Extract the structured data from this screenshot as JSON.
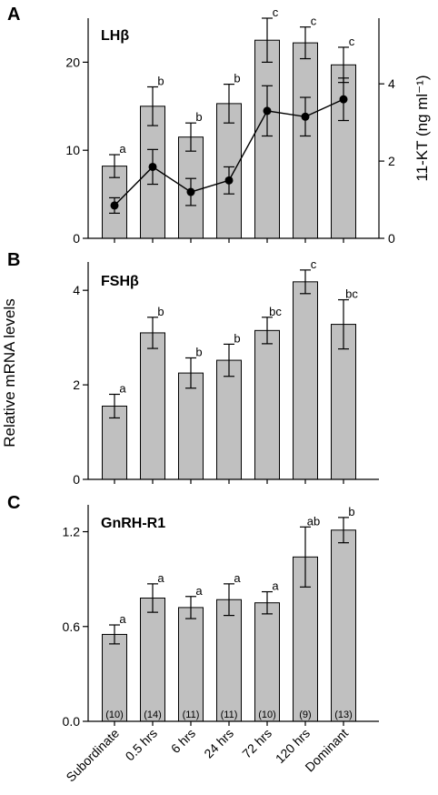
{
  "chart_data": [
    {
      "panel": "A",
      "type": "bar",
      "title": "LHβ",
      "categories": [
        "Subordinate",
        "0.5 hrs",
        "6 hrs",
        "24 hrs",
        "72 hrs",
        "120 hrs",
        "Dominant"
      ],
      "values": [
        8.2,
        15.0,
        11.5,
        15.3,
        22.5,
        22.2,
        19.7
      ],
      "errors": [
        1.3,
        2.2,
        1.6,
        2.2,
        2.5,
        1.8,
        2.0
      ],
      "significance": [
        "a",
        "b",
        "b",
        "b",
        "c",
        "c",
        "c"
      ],
      "ylim": [
        0,
        25
      ],
      "yticks": [
        0,
        10,
        20
      ],
      "ylabel": "",
      "secondary": {
        "type": "line",
        "ylabel": "11-KT (ng ml⁻¹)",
        "ylim": [
          0,
          5.7
        ],
        "yticks": [
          0,
          2,
          4
        ],
        "values": [
          0.85,
          1.85,
          1.2,
          1.5,
          3.3,
          3.15,
          3.6
        ],
        "errors": [
          0.2,
          0.45,
          0.35,
          0.35,
          0.65,
          0.5,
          0.55
        ]
      }
    },
    {
      "panel": "B",
      "type": "bar",
      "title": "FSHβ",
      "categories": [
        "Subordinate",
        "0.5 hrs",
        "6 hrs",
        "24 hrs",
        "72 hrs",
        "120 hrs",
        "Dominant"
      ],
      "values": [
        1.55,
        3.1,
        2.25,
        2.52,
        3.15,
        4.18,
        3.28
      ],
      "errors": [
        0.25,
        0.33,
        0.32,
        0.34,
        0.28,
        0.25,
        0.52
      ],
      "significance": [
        "a",
        "b",
        "b",
        "b",
        "bc",
        "c",
        "bc"
      ],
      "ylim": [
        0,
        4.6
      ],
      "yticks": [
        0,
        2,
        4
      ],
      "ylabel": "Relative mRNA levels"
    },
    {
      "panel": "C",
      "type": "bar",
      "title": "GnRH-R1",
      "categories": [
        "Subordinate",
        "0.5 hrs",
        "6 hrs",
        "24 hrs",
        "72 hrs",
        "120 hrs",
        "Dominant"
      ],
      "values": [
        0.55,
        0.78,
        0.72,
        0.77,
        0.75,
        1.04,
        1.21
      ],
      "errors": [
        0.06,
        0.09,
        0.07,
        0.1,
        0.07,
        0.19,
        0.08
      ],
      "significance": [
        "a",
        "a",
        "a",
        "a",
        "a",
        "ab",
        "b"
      ],
      "sample_sizes": [
        "(10)",
        "(14)",
        "(11)",
        "(11)",
        "(10)",
        "(9)",
        "(13)"
      ],
      "ylim": [
        0,
        1.37
      ],
      "yticks": [
        "0.0",
        "0.6",
        "1.2"
      ],
      "ylabel": ""
    }
  ],
  "colors": {
    "bar_fill": "#c0c0c0",
    "bar_stroke": "#000000",
    "line": "#000000"
  }
}
